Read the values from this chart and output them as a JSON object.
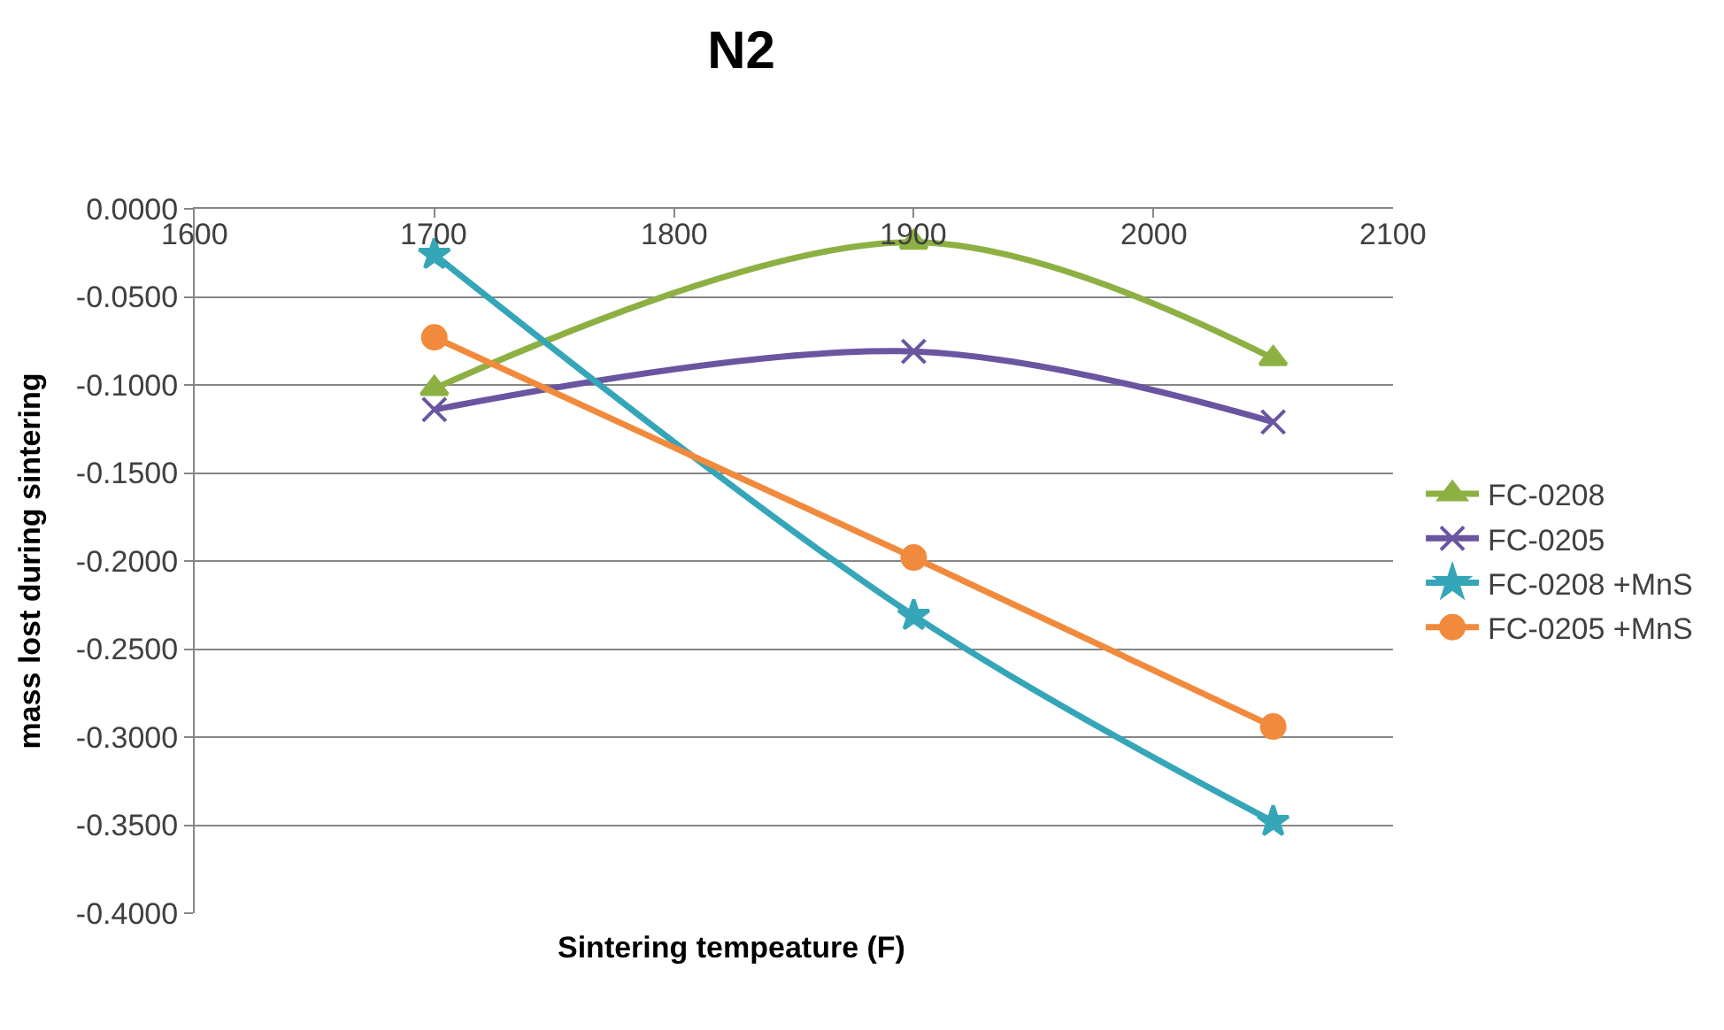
{
  "chart_data": {
    "type": "line",
    "title": "N2",
    "xlabel": "Sintering tempeature (F)",
    "ylabel": "mass lost during sintering",
    "x": [
      1700,
      1900,
      2050
    ],
    "series": [
      {
        "name": "FC-0208",
        "color": "#8db043",
        "marker": "triangle",
        "values": [
          -0.102,
          -0.019,
          -0.085
        ]
      },
      {
        "name": "FC-0205",
        "color": "#6a55a0",
        "marker": "cross",
        "values": [
          -0.114,
          -0.081,
          -0.121
        ]
      },
      {
        "name": "FC-0208 +MnS",
        "color": "#35a6b8",
        "marker": "star",
        "values": [
          -0.026,
          -0.231,
          -0.348
        ]
      },
      {
        "name": "FC-0205 +MnS",
        "color": "#f18a3c",
        "marker": "circle",
        "values": [
          -0.073,
          -0.198,
          -0.294
        ]
      }
    ],
    "xlim": [
      1600,
      2100
    ],
    "xticks": [
      1600,
      1700,
      1800,
      1900,
      2000,
      2100
    ],
    "ylim": [
      -0.4,
      0
    ],
    "yticks": [
      {
        "value": 0,
        "label": "0.0000"
      },
      {
        "value": -0.05,
        "label": "-0.0500"
      },
      {
        "value": -0.1,
        "label": "-0.1000"
      },
      {
        "value": -0.15,
        "label": "-0.1500"
      },
      {
        "value": -0.2,
        "label": "-0.2000"
      },
      {
        "value": -0.25,
        "label": "-0.2500"
      },
      {
        "value": -0.3,
        "label": "-0.3000"
      },
      {
        "value": -0.35,
        "label": "-0.3500"
      },
      {
        "value": -0.4,
        "label": "-0.4000"
      }
    ],
    "grid": "y",
    "legend": "right",
    "line_style": "solid"
  }
}
